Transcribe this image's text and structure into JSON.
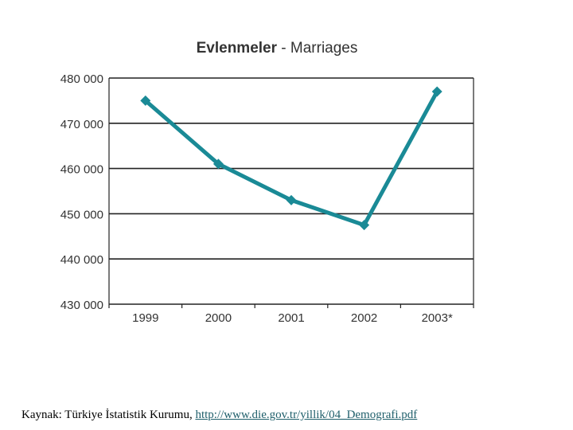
{
  "chart_data": {
    "type": "line",
    "title": "Evlenmeler - Marriages",
    "title_bold": "Evlenmeler",
    "title_rest": " - Marriages",
    "categories": [
      "1999",
      "2000",
      "2001",
      "2002",
      "2003*"
    ],
    "series": [
      {
        "values": [
          475000,
          461000,
          453000,
          447500,
          477000
        ],
        "color": "#1a8a96"
      }
    ],
    "ylim": [
      430000,
      480000
    ],
    "yticks": [
      430000,
      440000,
      450000,
      460000,
      470000,
      480000
    ],
    "ytick_labels": [
      "430 000",
      "440 000",
      "450 000",
      "460 000",
      "470 000",
      "480 000"
    ],
    "grid": true,
    "xlabel": "",
    "ylabel": ""
  },
  "source": {
    "prefix": "Kaynak: Türkiye İstatistik Kurumu, ",
    "link": "http://www.die.gov.tr/yillik/04_Demografi.pdf"
  }
}
